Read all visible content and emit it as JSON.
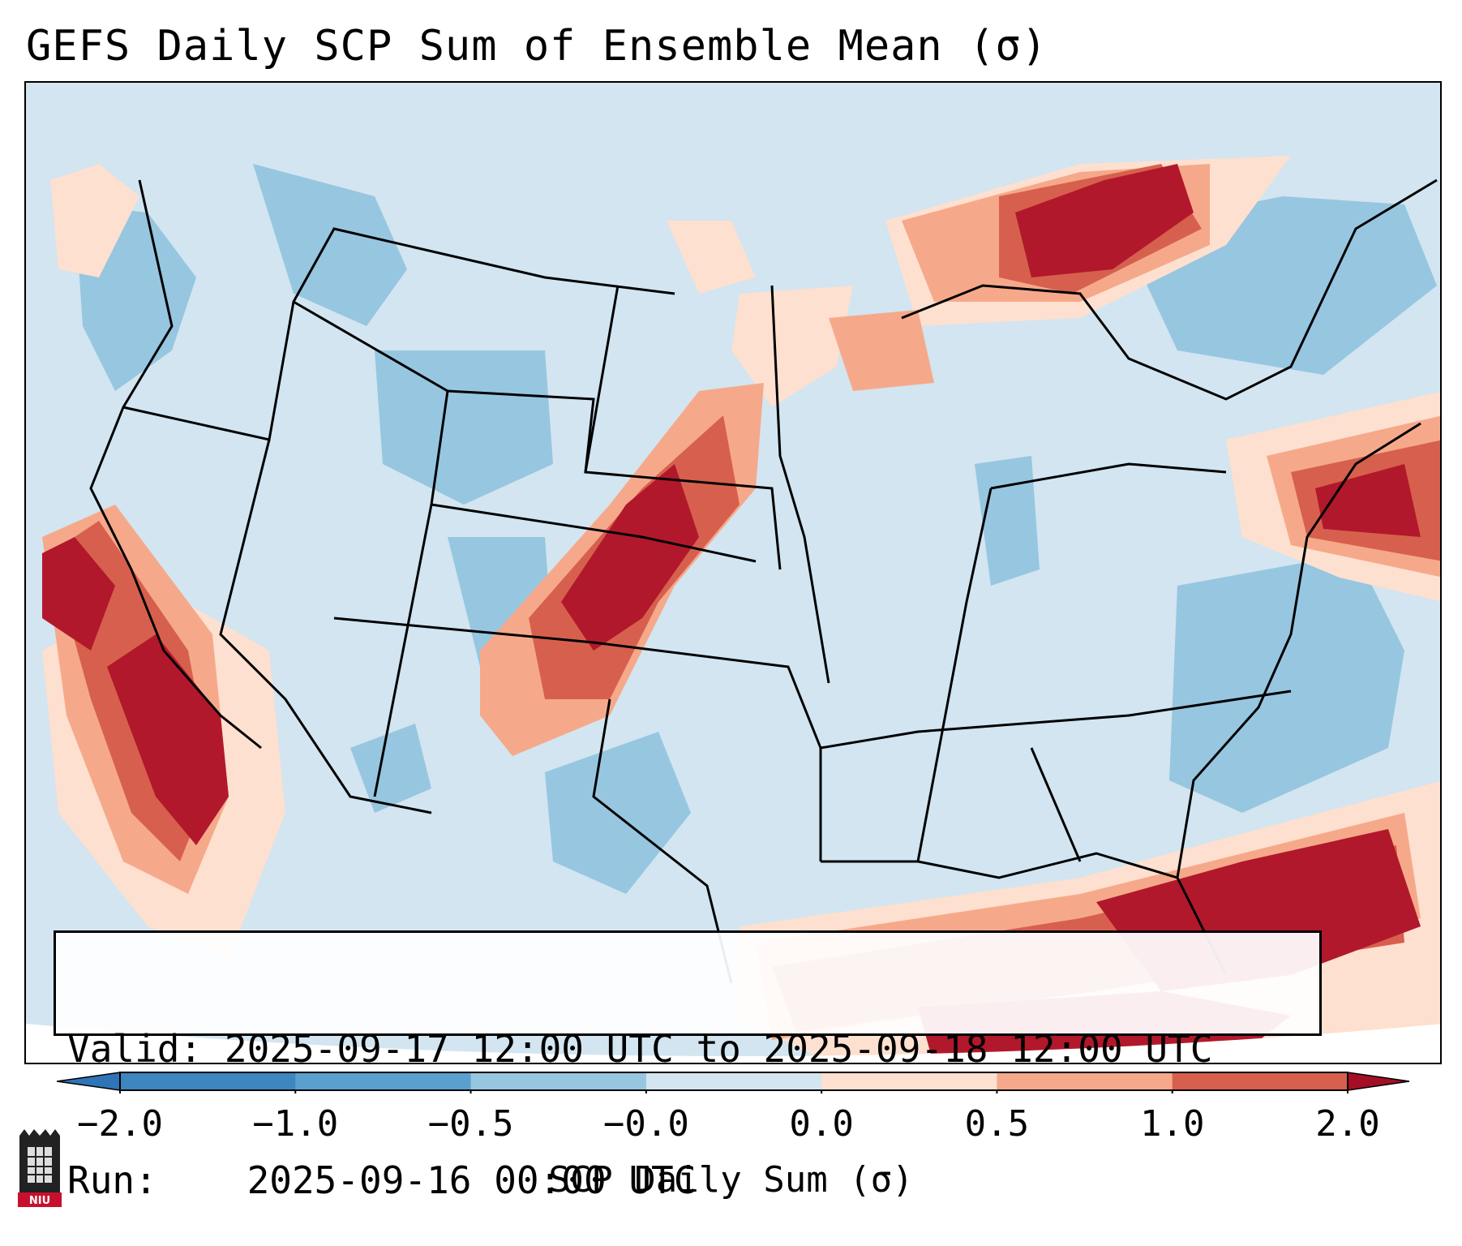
{
  "title": "GEFS Daily SCP Sum of Ensemble Mean (σ)",
  "info": {
    "valid_label": "Valid:",
    "valid_value": "2025-09-17 12:00 UTC to 2025-09-18 12:00 UTC",
    "run_label": "Run:",
    "run_value": "2025-09-16 00:00 UTC"
  },
  "colorbar": {
    "label": "SCP Daily Sum (σ)",
    "ticks": [
      "−2.0",
      "−1.0",
      "−0.5",
      "−0.0",
      "0.0",
      "0.5",
      "1.0",
      "2.0"
    ],
    "colors": [
      "#3d86bf",
      "#5aa0cf",
      "#97c6e0",
      "#d2e5f0",
      "#fde0d0",
      "#f6a98a",
      "#d6604d",
      "#b2182b"
    ],
    "under_color": "#2f74b6",
    "over_color": "#a50f26"
  },
  "map": {
    "background_color": "#d2e5f0",
    "regions": [
      {
        "name": "west-coast-offshore-max",
        "level": "2.0"
      },
      {
        "name": "southern-plains-corridor",
        "level": "2.0"
      },
      {
        "name": "upper-great-lakes-max",
        "level": "2.0"
      },
      {
        "name": "mid-atlantic-offshore-max",
        "level": "2.0"
      },
      {
        "name": "gulf-of-mexico-max",
        "level": "2.0"
      },
      {
        "name": "western-atlantic-max",
        "level": "2.0"
      }
    ]
  },
  "logo": {
    "text": "NIU"
  }
}
